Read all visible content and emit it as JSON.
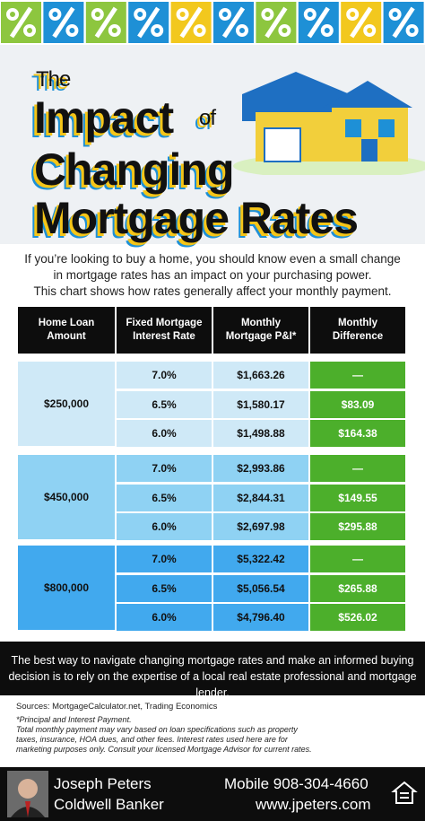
{
  "header": {
    "title_the": "The",
    "title_impact": "Impact",
    "title_of": "of",
    "title_changing": "Changing",
    "title_mortgage": "Mortgage Rates"
  },
  "intro": [
    "If you’re looking to buy a home, you should know even a small change",
    "in mortgage rates has an impact on your purchasing power.",
    "This chart shows how rates generally affect your monthly payment."
  ],
  "table": {
    "header": [
      [
        "Home Loan",
        "Amount"
      ],
      [
        "Fixed Mortgage",
        "Interest Rate"
      ],
      [
        "Monthly",
        "Mortgage P&I*"
      ],
      [
        "Monthly",
        "Difference"
      ]
    ],
    "groups": [
      {
        "amount": "$250,000",
        "rows": [
          [
            "7.0%",
            "$1,663.26",
            "—"
          ],
          [
            "6.5%",
            "$1,580.17",
            "$83.09"
          ],
          [
            "6.0%",
            "$1,498.88",
            "$164.38"
          ]
        ]
      },
      {
        "amount": "$450,000",
        "rows": [
          [
            "7.0%",
            "$2,993.86",
            "—"
          ],
          [
            "6.5%",
            "$2,844.31",
            "$149.55"
          ],
          [
            "6.0%",
            "$2,697.98",
            "$295.88"
          ]
        ]
      },
      {
        "amount": "$800,000",
        "rows": [
          [
            "7.0%",
            "$5,322.42",
            "—"
          ],
          [
            "6.5%",
            "$5,056.54",
            "$265.88"
          ],
          [
            "6.0%",
            "$4,796.40",
            "$526.02"
          ]
        ]
      }
    ]
  },
  "callout": [
    "The best way to navigate changing mortgage rates and make an informed buying",
    "decision is to rely on the expertise of a local real estate professional and mortgage lender."
  ],
  "sources": "Sources: MortgageCalculator.net, Trading Economics",
  "notes": [
    "*Principal and Interest Payment.",
    "Total monthly payment may vary based on loan specifications such as property",
    "taxes, insurance, HOA dues, and other fees. Interest rates used here are for",
    "marketing purposes only. Consult your licensed Mortgage Advisor for current rates."
  ],
  "agent": {
    "name": "Joseph Peters",
    "company": "Coldwell Banker",
    "mobile": "Mobile 908-304-4660",
    "website": "www.jpeters.com"
  }
}
